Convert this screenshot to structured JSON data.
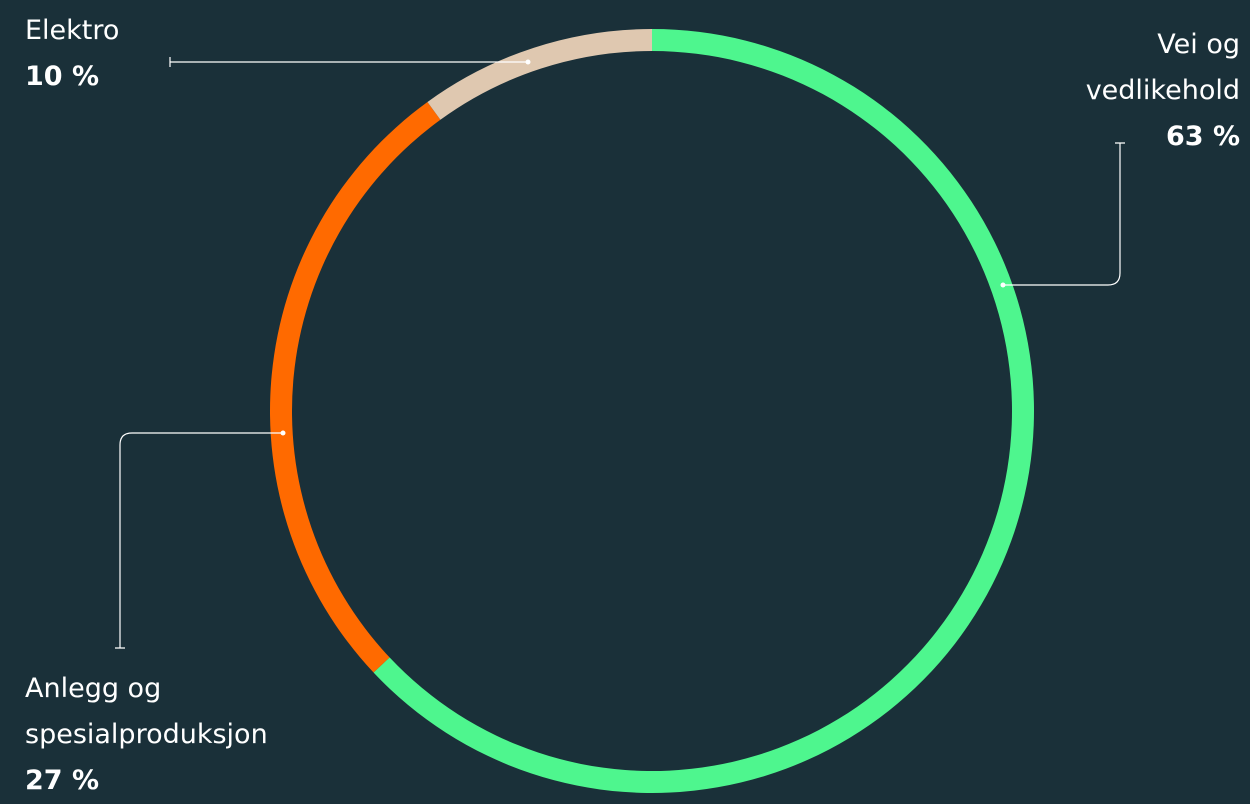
{
  "chart_data": {
    "type": "donut",
    "categories": [
      "Vei og vedlikehold",
      "Anlegg og spesialproduksjon",
      "Elektro"
    ],
    "values": [
      63,
      27,
      10
    ],
    "value_labels": [
      "63 %",
      "27 %",
      "10 %"
    ],
    "colors": [
      "#4ef68e",
      "#ff6a00",
      "#dfc8b0"
    ]
  }
}
